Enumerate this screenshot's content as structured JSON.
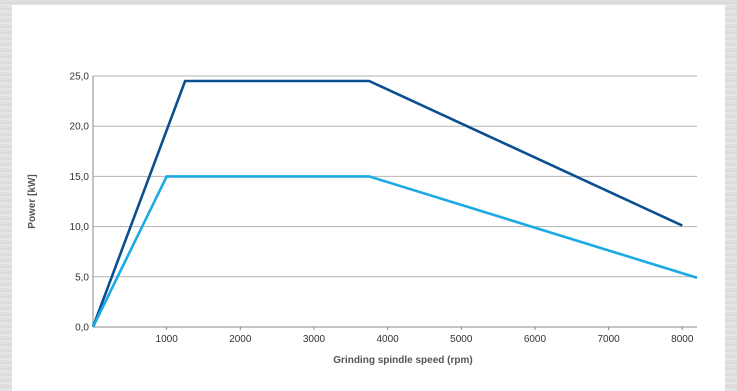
{
  "chart_data": {
    "type": "line",
    "title": "",
    "xlabel": "Grinding spindle speed (rpm)",
    "ylabel": "Power [kW]",
    "xlim": [
      0,
      8200
    ],
    "ylim": [
      0,
      25
    ],
    "x_ticks": [
      1000,
      2000,
      3000,
      4000,
      5000,
      6000,
      7000,
      8000
    ],
    "x_tick_labels": [
      "1000",
      "2000",
      "3000",
      "4000",
      "5000",
      "6000",
      "7000",
      "8000"
    ],
    "y_ticks": [
      0,
      5,
      10,
      15,
      20,
      25
    ],
    "y_tick_labels": [
      "0,0",
      "5,0",
      "10,0",
      "15,0",
      "20,0",
      "25,0"
    ],
    "grid": "horizontal",
    "series": [
      {
        "color": "#0b4f91",
        "points": [
          [
            0,
            0
          ],
          [
            1250,
            24.5
          ],
          [
            3750,
            24.5
          ],
          [
            8000,
            10.1
          ]
        ]
      },
      {
        "color": "#1aaae4",
        "points": [
          [
            0,
            0
          ],
          [
            1000,
            15.0
          ],
          [
            3750,
            15.0
          ],
          [
            8200,
            4.9
          ]
        ]
      }
    ]
  }
}
